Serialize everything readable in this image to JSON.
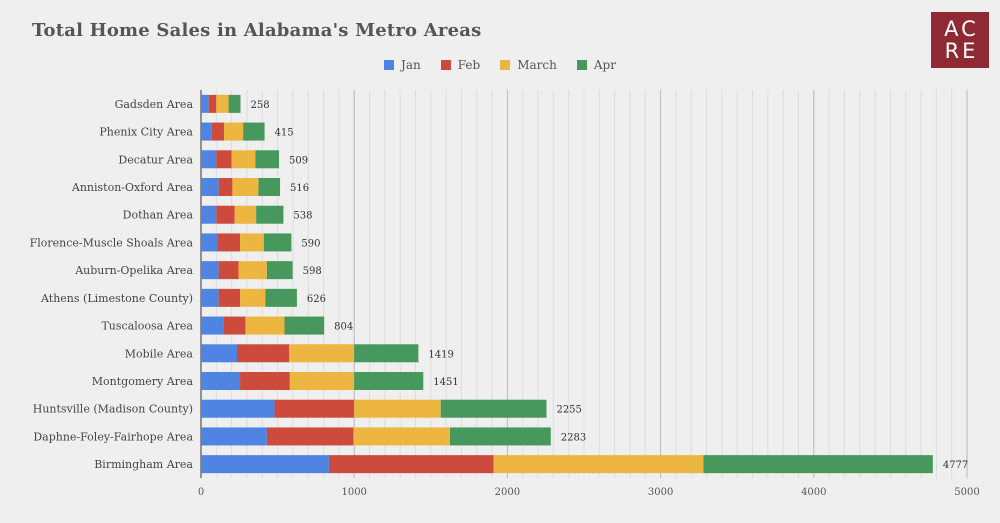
{
  "title": "Total Home Sales in Alabama's Metro Areas",
  "logo": {
    "line1": "AC",
    "line2": "RE"
  },
  "colors": {
    "Jan": "#4f84e3",
    "Feb": "#cc4b3c",
    "March": "#ecb640",
    "Apr": "#46985c"
  },
  "chart_data": {
    "type": "bar",
    "orientation": "horizontal",
    "stacked": true,
    "title": "Total Home Sales in Alabama's Metro Areas",
    "categories": [
      "Gadsden Area",
      "Phenix City Area",
      "Decatur Area",
      "Anniston-Oxford Area",
      "Dothan Area",
      "Florence-Muscle Shoals Area",
      "Auburn-Opelika Area",
      "Athens (Limestone County)",
      "Tuscaloosa Area",
      "Mobile Area",
      "Montgomery Area",
      "Huntsville (Madison County)",
      "Daphne-Foley-Fairhope Area",
      "Birmingham Area"
    ],
    "series": [
      {
        "name": "Jan",
        "values": [
          50,
          70,
          100,
          115,
          100,
          105,
          115,
          115,
          145,
          235,
          255,
          480,
          430,
          835
        ]
      },
      {
        "name": "Feb",
        "values": [
          50,
          80,
          100,
          90,
          120,
          150,
          130,
          140,
          145,
          340,
          325,
          520,
          565,
          1075
        ]
      },
      {
        "name": "March",
        "values": [
          80,
          125,
          155,
          170,
          140,
          155,
          185,
          165,
          255,
          425,
          420,
          565,
          630,
          1370
        ]
      },
      {
        "name": "Apr",
        "values": [
          78,
          140,
          154,
          141,
          178,
          180,
          168,
          206,
          259,
          419,
          451,
          690,
          658,
          1497
        ]
      }
    ],
    "totals": [
      258,
      415,
      509,
      516,
      538,
      590,
      598,
      626,
      804,
      1419,
      1451,
      2255,
      2283,
      4777
    ],
    "xlim": [
      0,
      5000
    ],
    "xticks": [
      0,
      1000,
      2000,
      3000,
      4000,
      5000
    ],
    "xlabel": "",
    "ylabel": "",
    "grid": true,
    "legend_position": "top-center"
  }
}
